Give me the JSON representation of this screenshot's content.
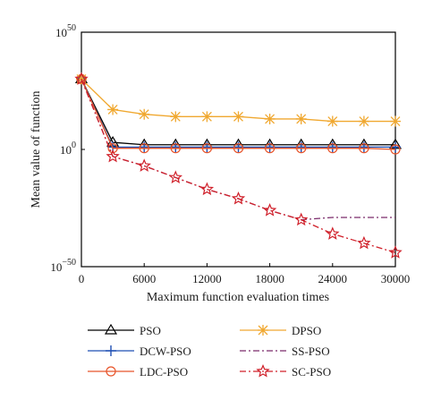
{
  "chart_data": {
    "type": "line",
    "title": "",
    "xlabel": "Maximum function evaluation times",
    "ylabel": "Mean value of function",
    "xlim": [
      0,
      30000
    ],
    "ylim_exponent": [
      -50,
      50
    ],
    "y_scale": "log",
    "grid": false,
    "x_ticks": [
      "0",
      "6000",
      "12000",
      "18000",
      "24000",
      "30000"
    ],
    "x_tick_values": [
      0,
      6000,
      12000,
      18000,
      24000,
      30000
    ],
    "y_ticks": [
      {
        "base": "10",
        "exp": "50"
      },
      {
        "base": "10",
        "exp": "0"
      },
      {
        "base": "10",
        "exp": "−50"
      }
    ],
    "y_tick_exponents": [
      50,
      0,
      -50
    ],
    "legend_position": "bottom",
    "series": [
      {
        "name": "PSO",
        "color": "#000000",
        "marker": "triangle",
        "dash": "solid",
        "x": [
          0,
          3000,
          6000,
          9000,
          12000,
          15000,
          18000,
          21000,
          24000,
          27000,
          30000
        ],
        "y_exponent": [
          30,
          3,
          2,
          2,
          2,
          2,
          2,
          2,
          2,
          2,
          2
        ]
      },
      {
        "name": "DCW-PSO",
        "color": "#1f4fb4",
        "marker": "plus",
        "dash": "solid",
        "x": [
          0,
          3000,
          6000,
          9000,
          12000,
          15000,
          18000,
          21000,
          24000,
          27000,
          30000
        ],
        "y_exponent": [
          30,
          1,
          1,
          1,
          1,
          1,
          1,
          1,
          1,
          1,
          1
        ]
      },
      {
        "name": "LDC-PSO",
        "color": "#e8542a",
        "marker": "circle",
        "dash": "solid",
        "x": [
          0,
          3000,
          6000,
          9000,
          12000,
          15000,
          18000,
          21000,
          24000,
          27000,
          30000
        ],
        "y_exponent": [
          30,
          0.5,
          0.5,
          0.5,
          0.5,
          0.5,
          0.5,
          0.5,
          0.5,
          0.5,
          0
        ]
      },
      {
        "name": "DPSO",
        "color": "#f0a830",
        "marker": "asterisk",
        "dash": "solid",
        "x": [
          0,
          3000,
          6000,
          9000,
          12000,
          15000,
          18000,
          21000,
          24000,
          27000,
          30000
        ],
        "y_exponent": [
          30,
          17,
          15,
          14,
          14,
          14,
          13,
          13,
          12,
          12,
          12
        ]
      },
      {
        "name": "SS-PSO",
        "color": "#7a2a6a",
        "marker": "none",
        "dash": "dashdot",
        "x": [
          0,
          3000,
          6000,
          9000,
          12000,
          15000,
          18000,
          21000,
          24000,
          27000,
          30000
        ],
        "y_exponent": [
          30,
          -3,
          -7,
          -12,
          -17,
          -21,
          -26,
          -30,
          -29,
          -29,
          -29
        ]
      },
      {
        "name": "SC-PSO",
        "color": "#d0202a",
        "marker": "star",
        "dash": "dashdot",
        "x": [
          0,
          3000,
          6000,
          9000,
          12000,
          15000,
          18000,
          21000,
          24000,
          27000,
          30000
        ],
        "y_exponent": [
          30,
          -3,
          -7,
          -12,
          -17,
          -21,
          -26,
          -30,
          -36,
          -40,
          -44
        ]
      }
    ]
  },
  "colors": {
    "axis": "#000000",
    "background": "#ffffff"
  }
}
